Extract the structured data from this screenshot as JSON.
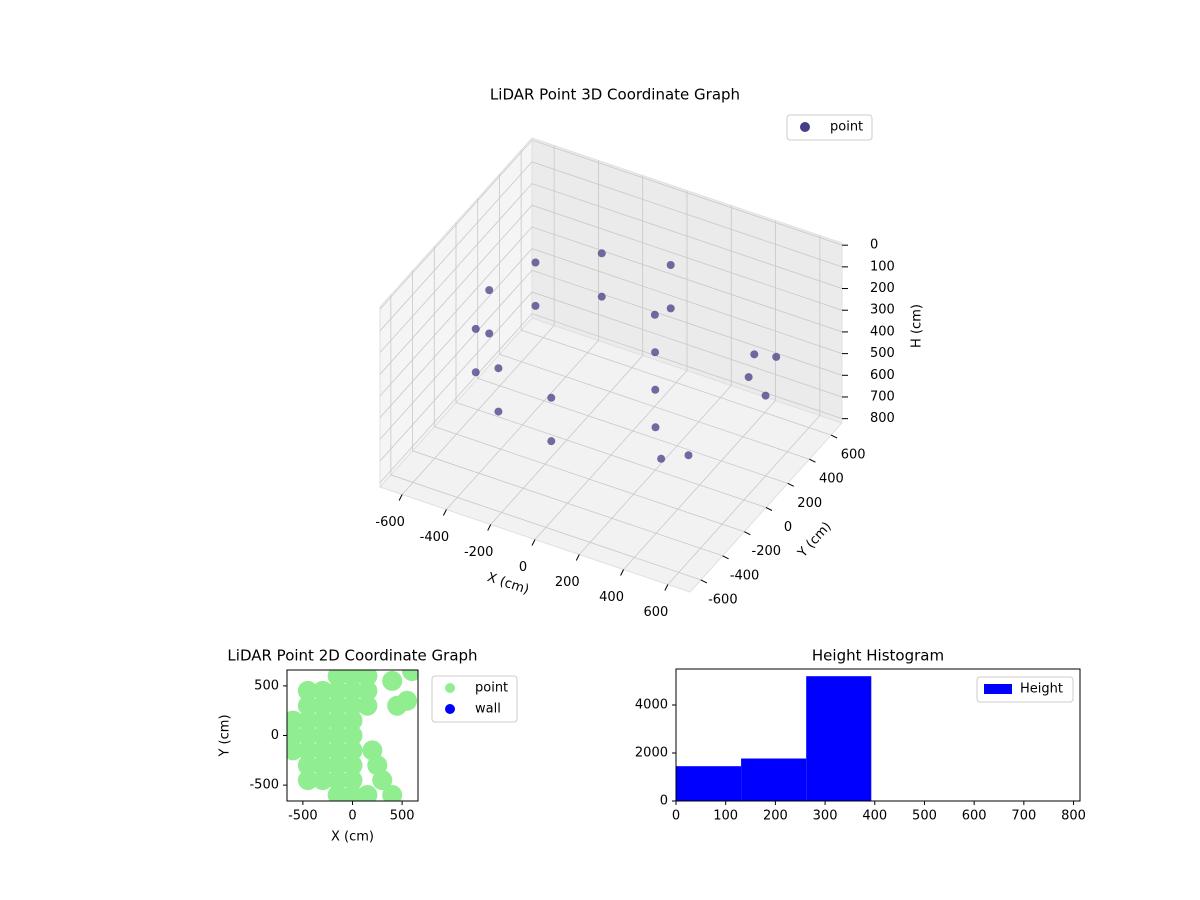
{
  "chart_data": [
    {
      "type": "scatter3d",
      "title": "LiDAR Point 3D Coordinate Graph",
      "xlabel": "X (cm)",
      "ylabel": "Y (cm)",
      "zlabel": "H (cm)",
      "xlim": [
        -700,
        700
      ],
      "ylim": [
        -700,
        700
      ],
      "zlim": [
        820,
        -10
      ],
      "xticks": [
        -600,
        -400,
        -200,
        0,
        200,
        400,
        600
      ],
      "yticks": [
        -600,
        -400,
        -200,
        0,
        200,
        400,
        600
      ],
      "zticks": [
        0,
        100,
        200,
        300,
        400,
        500,
        600,
        700,
        800
      ],
      "grid": true,
      "legend": "upper right",
      "series": [
        {
          "name": "point",
          "color": "#433e85",
          "x": [
            0,
            -275,
            -476,
            -550,
            -476,
            -275,
            0,
            0,
            -275,
            -476,
            -550,
            -476,
            -275,
            0,
            100,
            150,
            200,
            250,
            300,
            350,
            500,
            550,
            600,
            450
          ],
          "y": [
            550,
            476,
            275,
            0,
            -275,
            -476,
            -550,
            550,
            476,
            275,
            0,
            -275,
            -476,
            -550,
            200,
            100,
            0,
            -100,
            -150,
            0,
            300,
            400,
            200,
            350
          ],
          "z": [
            250,
            250,
            250,
            250,
            250,
            250,
            250,
            450,
            450,
            450,
            450,
            450,
            450,
            450,
            250,
            350,
            450,
            550,
            650,
            700,
            350,
            400,
            450,
            500
          ]
        }
      ]
    },
    {
      "type": "scatter",
      "title": "LiDAR Point 2D Coordinate Graph",
      "xlabel": "X (cm)",
      "ylabel": "Y (cm)",
      "xlim": [
        -660,
        660
      ],
      "ylim": [
        -660,
        660
      ],
      "xticks": [
        -500,
        0,
        500
      ],
      "yticks": [
        -500,
        0,
        500
      ],
      "legend": "outside right",
      "series": [
        {
          "name": "point",
          "color": "#90ee90",
          "x": [
            -600,
            -600,
            -600,
            -450,
            -450,
            -450,
            -450,
            -450,
            -450,
            -450,
            -300,
            -300,
            -300,
            -300,
            -300,
            -300,
            -300,
            -150,
            -150,
            -150,
            -150,
            -150,
            -150,
            -150,
            -150,
            -150,
            0,
            0,
            0,
            0,
            0,
            0,
            0,
            0,
            0,
            150,
            150,
            200,
            250,
            300,
            400,
            450,
            550,
            400,
            600,
            150,
            150
          ],
          "y": [
            -150,
            0,
            150,
            -450,
            -300,
            -150,
            0,
            150,
            300,
            450,
            -450,
            -300,
            -150,
            0,
            150,
            300,
            450,
            -600,
            -450,
            -300,
            -150,
            0,
            150,
            300,
            450,
            600,
            -600,
            -450,
            -300,
            -150,
            0,
            150,
            300,
            450,
            600,
            450,
            300,
            -150,
            -300,
            -450,
            -600,
            300,
            350,
            550,
            650,
            600,
            -600
          ]
        },
        {
          "name": "wall",
          "color": "#0000ff",
          "x": [],
          "y": []
        }
      ]
    },
    {
      "type": "histogram",
      "title": "Height Histogram",
      "bins": [
        0,
        131,
        262,
        393,
        524,
        655,
        786
      ],
      "xlim": [
        0,
        813
      ],
      "ylim": [
        0,
        5500
      ],
      "xticks": [
        0,
        100,
        200,
        300,
        400,
        500,
        600,
        700,
        800
      ],
      "yticks": [
        0,
        2000,
        4000
      ],
      "legend": "upper right",
      "series": [
        {
          "name": "Height",
          "color": "#0000ff",
          "values": [
            1450,
            1770,
            5200,
            0,
            0,
            0
          ]
        }
      ]
    }
  ]
}
